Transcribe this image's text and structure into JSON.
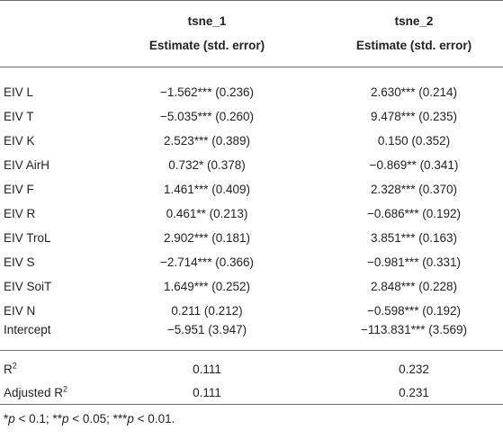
{
  "header": {
    "col1_title": "tsne_1",
    "col2_title": "tsne_2",
    "col1_sub": "Estimate (std. error)",
    "col2_sub": "Estimate (std. error)"
  },
  "rows": [
    {
      "label": "EIV L",
      "c1": "−1.562*** (0.236)",
      "c2": "2.630*** (0.214)"
    },
    {
      "label": "EIV T",
      "c1": "−5.035*** (0.260)",
      "c2": "9.478*** (0.235)"
    },
    {
      "label": "EIV K",
      "c1": "2.523*** (0.389)",
      "c2": "0.150 (0.352)"
    },
    {
      "label": "EIV AirH",
      "c1": "0.732* (0.378)",
      "c2": "−0.869** (0.341)"
    },
    {
      "label": "EIV F",
      "c1": "1.461*** (0.409)",
      "c2": "2.328*** (0.370)"
    },
    {
      "label": "EIV R",
      "c1": "0.461** (0.213)",
      "c2": "−0.686*** (0.192)"
    },
    {
      "label": "EIV TroL",
      "c1": "2.902*** (0.181)",
      "c2": "3.851*** (0.163)"
    },
    {
      "label": "EIV S",
      "c1": "−2.714*** (0.366)",
      "c2": "−0.981*** (0.331)"
    },
    {
      "label": "EIV SoiT",
      "c1": "1.649*** (0.252)",
      "c2": "2.848*** (0.228)"
    },
    {
      "label": "EIV N",
      "c1": "0.211 (0.212)",
      "c2": "−0.598*** (0.192)"
    },
    {
      "label": "Intercept",
      "c1": "−5.951 (3.947)",
      "c2": "−113.831*** (3.569)"
    }
  ],
  "stats": {
    "r2": {
      "label": "R",
      "sup": "2",
      "c1": "0.111",
      "c2": "0.232"
    },
    "adj_r2": {
      "label": "Adjusted R",
      "sup": "2",
      "c1": "0.111",
      "c2": "0.231"
    }
  },
  "footnote": {
    "p1": "p",
    "t1": " < 0.1; **",
    "p2": "p",
    "t2": " < 0.05; ***",
    "p3": "p",
    "t3": " < 0.01."
  }
}
